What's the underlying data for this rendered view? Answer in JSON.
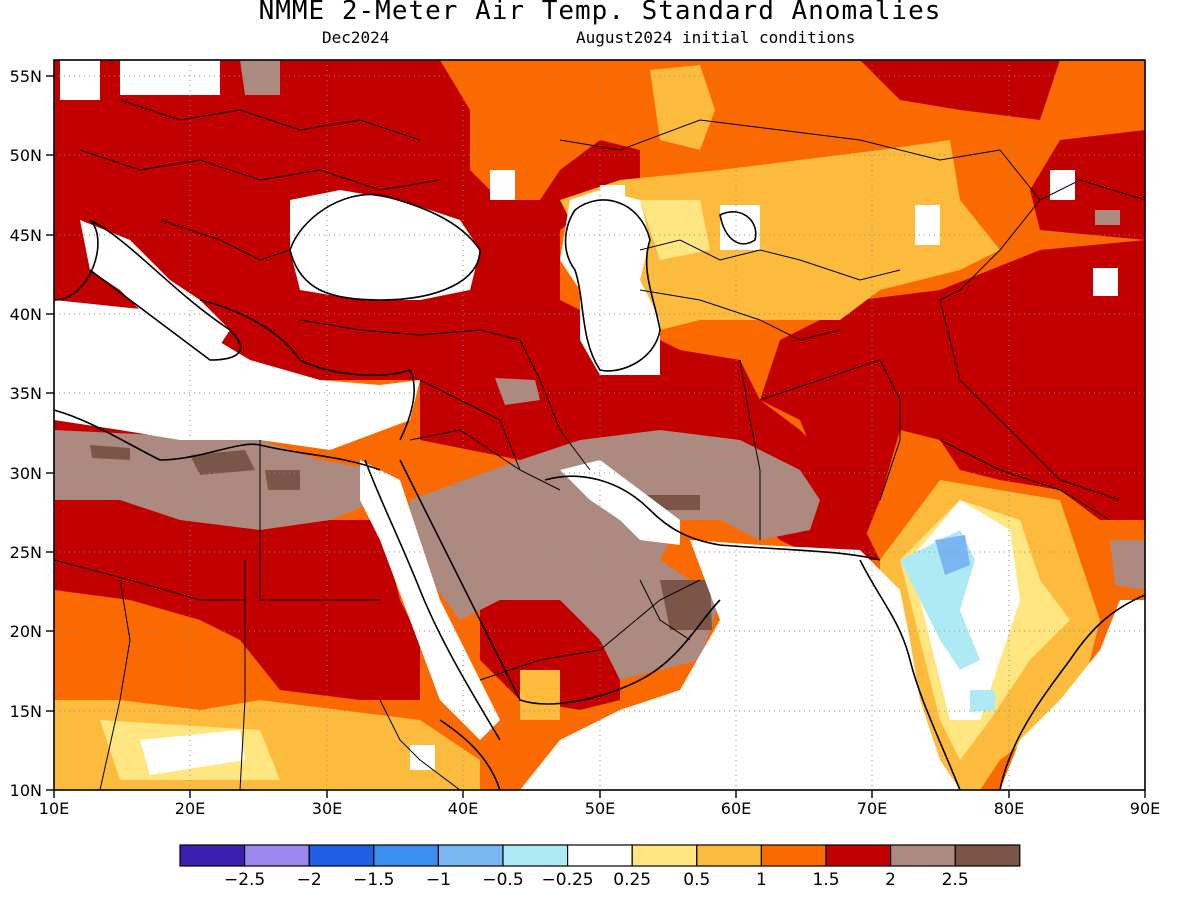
{
  "header": {
    "title": "NMME 2-Meter Air Temp. Standard Anomalies",
    "target_month": "Dec2024",
    "initial_conditions": "August2024 initial conditions"
  },
  "map": {
    "lon_range": [
      10,
      90
    ],
    "lat_range": [
      10,
      56
    ],
    "lon_ticks": [
      "10E",
      "20E",
      "30E",
      "40E",
      "50E",
      "60E",
      "70E",
      "80E",
      "90E"
    ],
    "lat_ticks": [
      "55N",
      "50N",
      "45N",
      "40N",
      "35N",
      "30N",
      "25N",
      "20N",
      "15N",
      "10N"
    ],
    "grid_lines": "dotted"
  },
  "colorbar": {
    "colors": [
      "#3a1fb0",
      "#9c87ef",
      "#1f5fe6",
      "#3b8ff0",
      "#7ab7f2",
      "#aeeaf4",
      "#ffffff",
      "#ffe680",
      "#fdbb3d",
      "#fb6a00",
      "#c30000",
      "#ad8a80",
      "#7a5548"
    ],
    "labels": [
      "−2.5",
      "−2",
      "−1.5",
      "−1",
      "−0.5",
      "−0.25",
      "0.25",
      "0.5",
      "1",
      "1.5",
      "2",
      "2.5"
    ]
  },
  "legend_colors": {
    "land_mask": "#ffffff",
    "anom_05_1": "#fdbb3d",
    "anom_1_15": "#fb6a00",
    "anom_15_2": "#c30000",
    "anom_2_25": "#ad8a80",
    "anom_gt_25": "#7a5548"
  }
}
